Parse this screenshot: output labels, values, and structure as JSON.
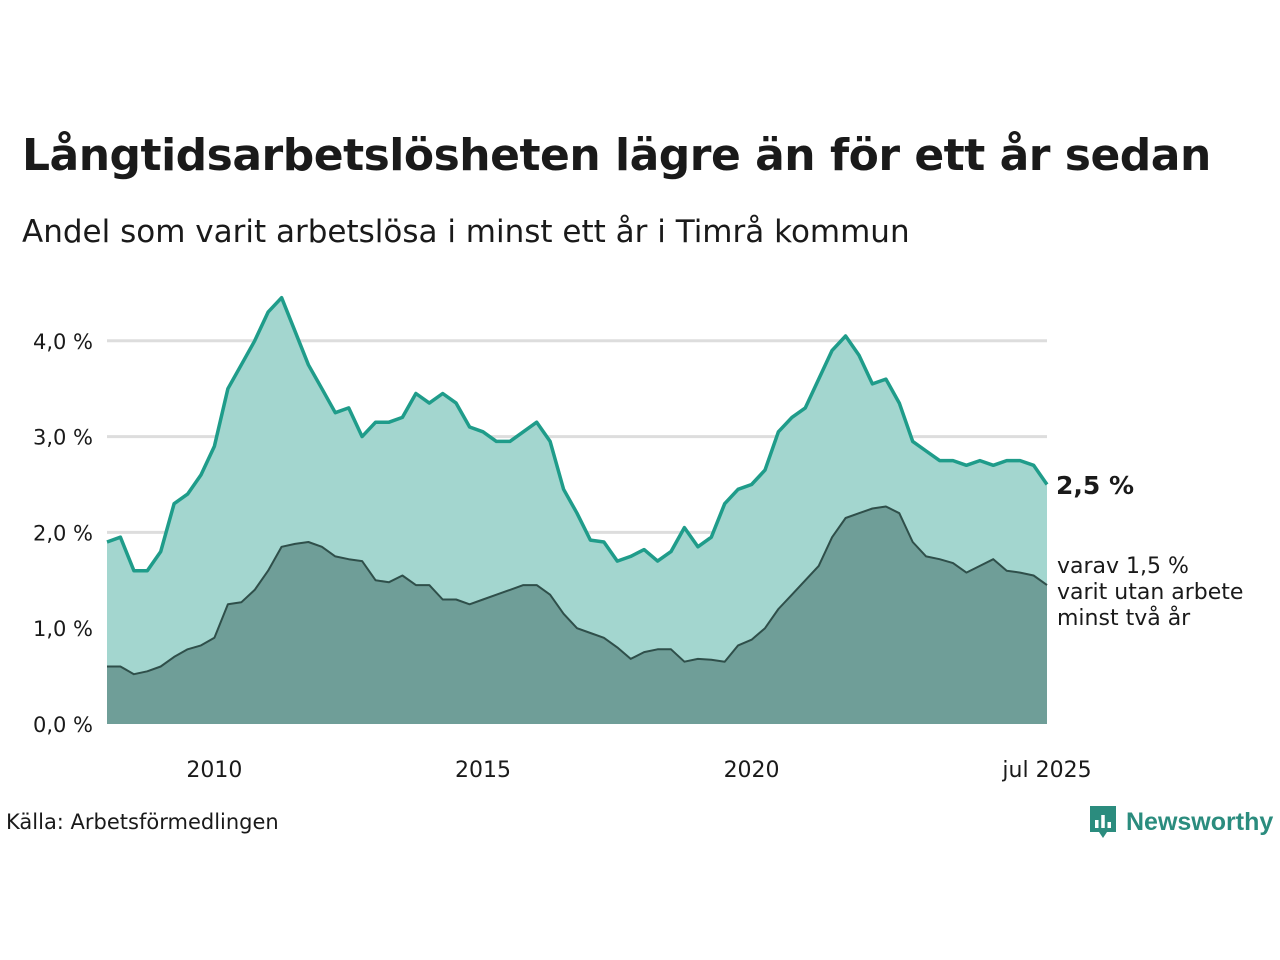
{
  "header": {
    "title": "Långtidsarbetslösheten lägre än för ett år sedan",
    "subtitle": "Andel som varit arbetslösa i minst ett år i Timrå kommun"
  },
  "footer": {
    "source": "Källa: Arbetsförmedlingen",
    "brand": "Newsworthy",
    "brand_icon": "bar-chart-speech-bubble-icon"
  },
  "colors": {
    "top_line": "#1f9c8a",
    "top_fill": "#a3d6cf",
    "bottom_line": "#2f4f4a",
    "bottom_fill": "#6f9e98",
    "grid": "#dddddd",
    "brand": "#2b8c7e"
  },
  "chart_data": {
    "type": "area",
    "x_ticks": [
      "2010",
      "2015",
      "2020",
      "jul 2025"
    ],
    "y_ticks": [
      "0,0 %",
      "1,0 %",
      "2,0 %",
      "3,0 %",
      "4,0 %"
    ],
    "ylim": [
      0,
      4.5
    ],
    "grid": true,
    "x_start": "2008-01",
    "x_end": "2025-07",
    "series": [
      {
        "name": "",
        "end_label": "2,5 %",
        "points": [
          [
            "2008-01",
            1.9
          ],
          [
            "2008-04",
            1.95
          ],
          [
            "2008-07",
            1.6
          ],
          [
            "2008-10",
            1.6
          ],
          [
            "2009-01",
            1.8
          ],
          [
            "2009-04",
            2.3
          ],
          [
            "2009-07",
            2.4
          ],
          [
            "2009-10",
            2.6
          ],
          [
            "2010-01",
            2.9
          ],
          [
            "2010-04",
            3.5
          ],
          [
            "2010-07",
            3.75
          ],
          [
            "2010-10",
            4.0
          ],
          [
            "2011-01",
            4.3
          ],
          [
            "2011-04",
            4.45
          ],
          [
            "2011-07",
            4.1
          ],
          [
            "2011-10",
            3.75
          ],
          [
            "2012-01",
            3.5
          ],
          [
            "2012-04",
            3.25
          ],
          [
            "2012-07",
            3.3
          ],
          [
            "2012-10",
            3.0
          ],
          [
            "2013-01",
            3.15
          ],
          [
            "2013-04",
            3.15
          ],
          [
            "2013-07",
            3.2
          ],
          [
            "2013-10",
            3.45
          ],
          [
            "2014-01",
            3.35
          ],
          [
            "2014-04",
            3.45
          ],
          [
            "2014-07",
            3.35
          ],
          [
            "2014-10",
            3.1
          ],
          [
            "2015-01",
            3.05
          ],
          [
            "2015-04",
            2.95
          ],
          [
            "2015-07",
            2.95
          ],
          [
            "2015-10",
            3.05
          ],
          [
            "2016-01",
            3.15
          ],
          [
            "2016-04",
            2.95
          ],
          [
            "2016-07",
            2.45
          ],
          [
            "2016-10",
            2.2
          ],
          [
            "2017-01",
            1.92
          ],
          [
            "2017-04",
            1.9
          ],
          [
            "2017-07",
            1.7
          ],
          [
            "2017-10",
            1.75
          ],
          [
            "2018-01",
            1.82
          ],
          [
            "2018-04",
            1.7
          ],
          [
            "2018-07",
            1.8
          ],
          [
            "2018-10",
            2.05
          ],
          [
            "2019-01",
            1.85
          ],
          [
            "2019-04",
            1.95
          ],
          [
            "2019-07",
            2.3
          ],
          [
            "2019-10",
            2.45
          ],
          [
            "2020-01",
            2.5
          ],
          [
            "2020-04",
            2.65
          ],
          [
            "2020-07",
            3.05
          ],
          [
            "2020-10",
            3.2
          ],
          [
            "2021-01",
            3.3
          ],
          [
            "2021-04",
            3.6
          ],
          [
            "2021-07",
            3.9
          ],
          [
            "2021-10",
            4.05
          ],
          [
            "2022-01",
            3.85
          ],
          [
            "2022-04",
            3.55
          ],
          [
            "2022-07",
            3.6
          ],
          [
            "2022-10",
            3.35
          ],
          [
            "2023-01",
            2.95
          ],
          [
            "2023-04",
            2.85
          ],
          [
            "2023-07",
            2.75
          ],
          [
            "2023-10",
            2.75
          ],
          [
            "2024-01",
            2.7
          ],
          [
            "2024-04",
            2.75
          ],
          [
            "2024-07",
            2.7
          ],
          [
            "2024-10",
            2.75
          ],
          [
            "2025-01",
            2.75
          ],
          [
            "2025-04",
            2.7
          ],
          [
            "2025-07",
            2.5
          ]
        ]
      },
      {
        "name": "",
        "end_label": [
          "varav 1,5 %",
          "varit utan arbete",
          "minst två år"
        ],
        "points": [
          [
            "2008-01",
            0.6
          ],
          [
            "2008-04",
            0.6
          ],
          [
            "2008-07",
            0.52
          ],
          [
            "2008-10",
            0.55
          ],
          [
            "2009-01",
            0.6
          ],
          [
            "2009-04",
            0.7
          ],
          [
            "2009-07",
            0.78
          ],
          [
            "2009-10",
            0.82
          ],
          [
            "2010-01",
            0.9
          ],
          [
            "2010-04",
            1.25
          ],
          [
            "2010-07",
            1.27
          ],
          [
            "2010-10",
            1.4
          ],
          [
            "2011-01",
            1.6
          ],
          [
            "2011-04",
            1.85
          ],
          [
            "2011-07",
            1.88
          ],
          [
            "2011-10",
            1.9
          ],
          [
            "2012-01",
            1.85
          ],
          [
            "2012-04",
            1.75
          ],
          [
            "2012-07",
            1.72
          ],
          [
            "2012-10",
            1.7
          ],
          [
            "2013-01",
            1.5
          ],
          [
            "2013-04",
            1.48
          ],
          [
            "2013-07",
            1.55
          ],
          [
            "2013-10",
            1.45
          ],
          [
            "2014-01",
            1.45
          ],
          [
            "2014-04",
            1.3
          ],
          [
            "2014-07",
            1.3
          ],
          [
            "2014-10",
            1.25
          ],
          [
            "2015-01",
            1.3
          ],
          [
            "2015-04",
            1.35
          ],
          [
            "2015-07",
            1.4
          ],
          [
            "2015-10",
            1.45
          ],
          [
            "2016-01",
            1.45
          ],
          [
            "2016-04",
            1.35
          ],
          [
            "2016-07",
            1.15
          ],
          [
            "2016-10",
            1.0
          ],
          [
            "2017-01",
            0.95
          ],
          [
            "2017-04",
            0.9
          ],
          [
            "2017-07",
            0.8
          ],
          [
            "2017-10",
            0.68
          ],
          [
            "2018-01",
            0.75
          ],
          [
            "2018-04",
            0.78
          ],
          [
            "2018-07",
            0.78
          ],
          [
            "2018-10",
            0.65
          ],
          [
            "2019-01",
            0.68
          ],
          [
            "2019-04",
            0.67
          ],
          [
            "2019-07",
            0.65
          ],
          [
            "2019-10",
            0.82
          ],
          [
            "2020-01",
            0.88
          ],
          [
            "2020-04",
            1.0
          ],
          [
            "2020-07",
            1.2
          ],
          [
            "2020-10",
            1.35
          ],
          [
            "2021-01",
            1.5
          ],
          [
            "2021-04",
            1.65
          ],
          [
            "2021-07",
            1.95
          ],
          [
            "2021-10",
            2.15
          ],
          [
            "2022-01",
            2.2
          ],
          [
            "2022-04",
            2.25
          ],
          [
            "2022-07",
            2.27
          ],
          [
            "2022-10",
            2.2
          ],
          [
            "2023-01",
            1.9
          ],
          [
            "2023-04",
            1.75
          ],
          [
            "2023-07",
            1.72
          ],
          [
            "2023-10",
            1.68
          ],
          [
            "2024-01",
            1.58
          ],
          [
            "2024-04",
            1.65
          ],
          [
            "2024-07",
            1.72
          ],
          [
            "2024-10",
            1.6
          ],
          [
            "2025-01",
            1.58
          ],
          [
            "2025-04",
            1.55
          ],
          [
            "2025-07",
            1.45
          ]
        ]
      }
    ]
  }
}
